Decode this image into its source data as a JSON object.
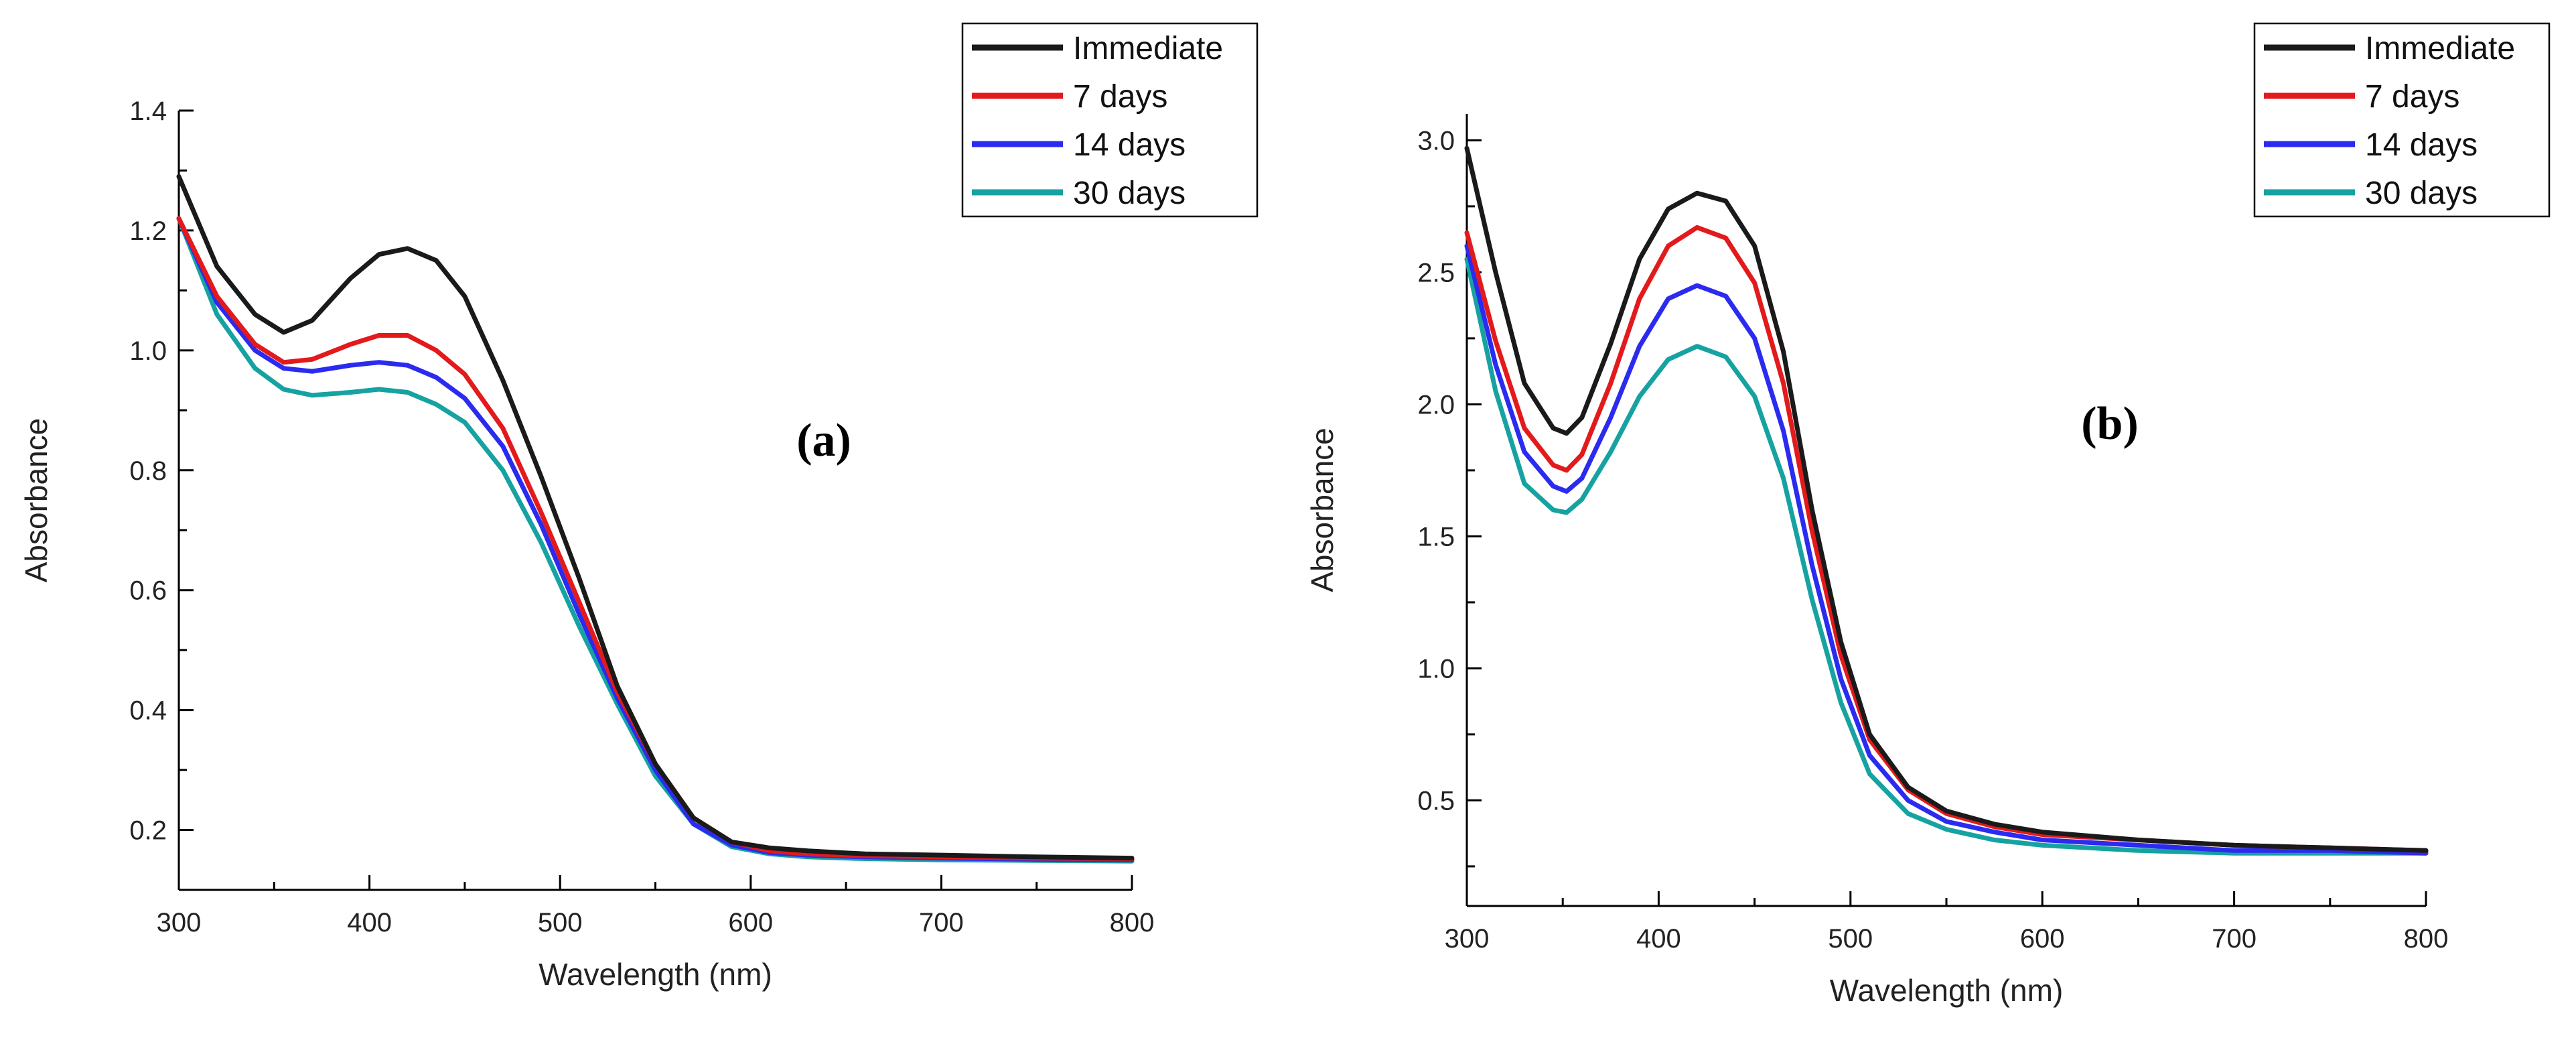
{
  "chart_data": [
    {
      "type": "line",
      "panel_label": "(a)",
      "xlabel": "Wavelength (nm)",
      "ylabel": "Absorbance",
      "xlim": [
        300,
        800
      ],
      "ylim": [
        0.1,
        1.4
      ],
      "xticks": [
        300,
        400,
        500,
        600,
        700,
        800
      ],
      "yticks": [
        0.2,
        0.4,
        0.6,
        0.8,
        1.0,
        1.2,
        1.4
      ],
      "grid": false,
      "legend_position": "top-right",
      "x": [
        300,
        320,
        340,
        355,
        370,
        390,
        405,
        420,
        435,
        450,
        470,
        490,
        510,
        530,
        550,
        570,
        590,
        610,
        630,
        660,
        700,
        750,
        800
      ],
      "series": [
        {
          "name": "Immediate",
          "color": "#1a1a1a",
          "values": [
            1.29,
            1.14,
            1.06,
            1.03,
            1.05,
            1.12,
            1.16,
            1.17,
            1.15,
            1.09,
            0.95,
            0.79,
            0.62,
            0.44,
            0.31,
            0.22,
            0.18,
            0.17,
            0.165,
            0.16,
            0.158,
            0.155,
            0.153
          ]
        },
        {
          "name": "7 days",
          "color": "#e31a1c",
          "values": [
            1.22,
            1.09,
            1.01,
            0.98,
            0.985,
            1.01,
            1.025,
            1.025,
            1.0,
            0.96,
            0.87,
            0.73,
            0.58,
            0.43,
            0.31,
            0.22,
            0.18,
            0.165,
            0.16,
            0.157,
            0.155,
            0.153,
            0.152
          ]
        },
        {
          "name": "14 days",
          "color": "#2b2bf0",
          "values": [
            1.22,
            1.08,
            1.0,
            0.97,
            0.965,
            0.975,
            0.98,
            0.975,
            0.955,
            0.92,
            0.84,
            0.71,
            0.56,
            0.42,
            0.3,
            0.21,
            0.175,
            0.162,
            0.158,
            0.155,
            0.153,
            0.151,
            0.15
          ]
        },
        {
          "name": "30 days",
          "color": "#17a2a2",
          "values": [
            1.22,
            1.06,
            0.97,
            0.935,
            0.925,
            0.93,
            0.935,
            0.93,
            0.91,
            0.88,
            0.8,
            0.68,
            0.54,
            0.41,
            0.29,
            0.21,
            0.172,
            0.16,
            0.155,
            0.152,
            0.15,
            0.149,
            0.148
          ]
        }
      ]
    },
    {
      "type": "line",
      "panel_label": "(b)",
      "xlabel": "Wavelength (nm)",
      "ylabel": "Absorbance",
      "xlim": [
        300,
        800
      ],
      "ylim": [
        0.1,
        3.1
      ],
      "xticks": [
        300,
        400,
        500,
        600,
        700,
        800
      ],
      "yticks": [
        0.5,
        1.0,
        1.5,
        2.0,
        2.5,
        3.0
      ],
      "grid": false,
      "legend_position": "top-right",
      "x": [
        300,
        315,
        330,
        345,
        352,
        360,
        375,
        390,
        405,
        420,
        435,
        450,
        465,
        480,
        495,
        510,
        530,
        550,
        575,
        600,
        650,
        700,
        750,
        800
      ],
      "series": [
        {
          "name": "Immediate",
          "color": "#1a1a1a",
          "values": [
            2.97,
            2.5,
            2.08,
            1.91,
            1.89,
            1.95,
            2.23,
            2.55,
            2.74,
            2.8,
            2.77,
            2.6,
            2.2,
            1.6,
            1.1,
            0.75,
            0.55,
            0.46,
            0.41,
            0.38,
            0.35,
            0.33,
            0.32,
            0.31
          ]
        },
        {
          "name": "7 days",
          "color": "#e31a1c",
          "values": [
            2.65,
            2.24,
            1.91,
            1.77,
            1.75,
            1.81,
            2.08,
            2.4,
            2.6,
            2.67,
            2.63,
            2.46,
            2.08,
            1.52,
            1.05,
            0.73,
            0.54,
            0.45,
            0.4,
            0.37,
            0.35,
            0.33,
            0.32,
            0.31
          ]
        },
        {
          "name": "14 days",
          "color": "#2b2bf0",
          "values": [
            2.6,
            2.15,
            1.82,
            1.69,
            1.67,
            1.72,
            1.95,
            2.22,
            2.4,
            2.45,
            2.41,
            2.25,
            1.9,
            1.39,
            0.96,
            0.67,
            0.5,
            0.42,
            0.38,
            0.35,
            0.33,
            0.31,
            0.31,
            0.3
          ]
        },
        {
          "name": "30 days",
          "color": "#17a2a2",
          "values": [
            2.55,
            2.05,
            1.7,
            1.6,
            1.59,
            1.64,
            1.82,
            2.03,
            2.17,
            2.22,
            2.18,
            2.03,
            1.72,
            1.26,
            0.87,
            0.6,
            0.45,
            0.39,
            0.35,
            0.33,
            0.31,
            0.3,
            0.3,
            0.3
          ]
        }
      ]
    }
  ]
}
